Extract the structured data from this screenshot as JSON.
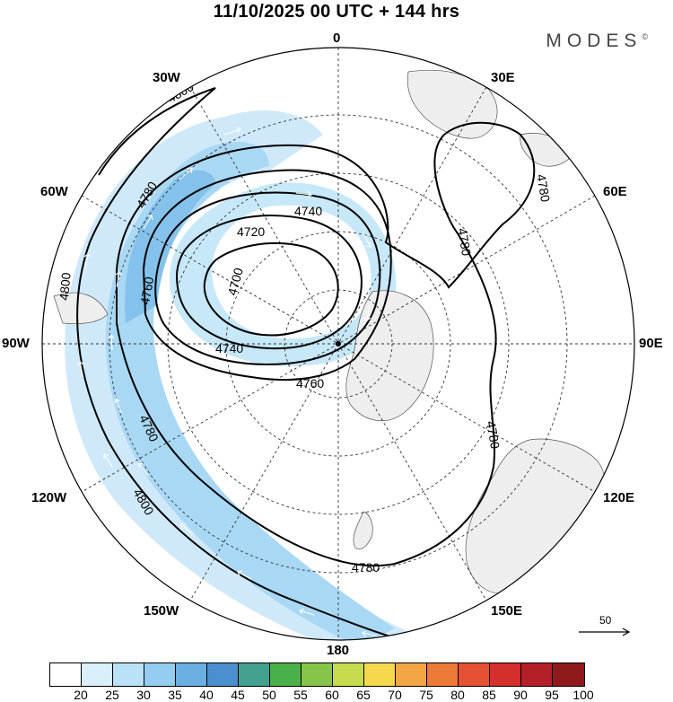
{
  "title": "11/10/2025  00 UTC  + 144 hrs",
  "brand": "MODES",
  "brand_mark": "©",
  "longitude_labels": {
    "lon_0": "0",
    "lon_30e": "30E",
    "lon_60e": "60E",
    "lon_90e": "90E",
    "lon_120e": "120E",
    "lon_150e": "150E",
    "lon_180": "180",
    "lon_150w": "150W",
    "lon_120w": "120W",
    "lon_90w": "90W",
    "lon_60w": "60W",
    "lon_30w": "30W"
  },
  "contours": [
    "4700",
    "4720",
    "4740",
    "4760",
    "4780",
    "4800"
  ],
  "vector_reference": "50",
  "colorbar": {
    "ticks": [
      "20",
      "25",
      "30",
      "35",
      "40",
      "45",
      "50",
      "55",
      "60",
      "65",
      "70",
      "75",
      "80",
      "85",
      "90",
      "95",
      "100"
    ],
    "colors": [
      "#ffffff",
      "#d9f0fc",
      "#b9e2f8",
      "#95cdf0",
      "#6aaee2",
      "#4b8fcc",
      "#42a08e",
      "#4cb04a",
      "#88c44a",
      "#c6dc4e",
      "#f5d84e",
      "#f4a645",
      "#ee7a3a",
      "#e55132",
      "#d42f2c",
      "#b51f27",
      "#8e1a1c"
    ]
  }
}
